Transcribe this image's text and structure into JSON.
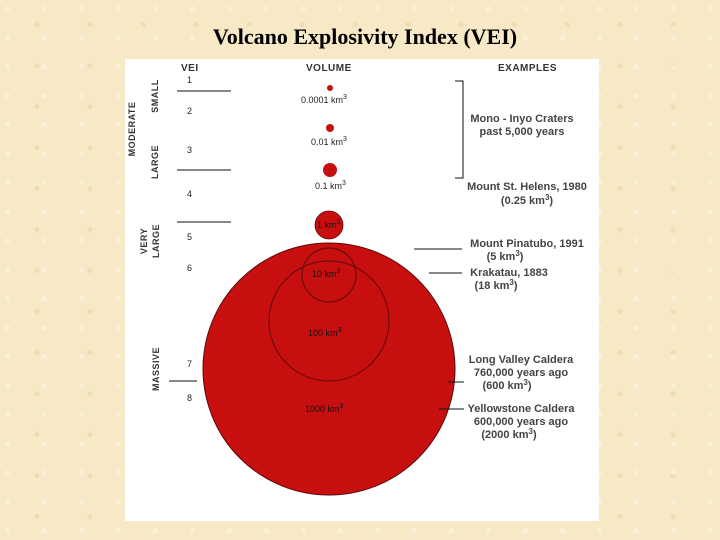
{
  "title": "Volcano Explosivity Index (VEI)",
  "headers": {
    "vei": "VEI",
    "volume": "VOLUME",
    "examples": "EXAMPLES"
  },
  "vei_levels": [
    "1",
    "2",
    "3",
    "4",
    "5",
    "6",
    "7",
    "8"
  ],
  "categories": {
    "small": "SMALL",
    "moderate": "MODERATE",
    "large": "LARGE",
    "very": "VERY",
    "very_large": "LARGE",
    "massive": "MASSIVE"
  },
  "volumes": {
    "v1": "0.0001 km",
    "v2": "0.01 km",
    "v3": "0.1 km",
    "v4": "1 km",
    "v5": "10 km",
    "v6": "100 km",
    "v7": "1000 km",
    "exp": "3"
  },
  "examples": {
    "mono_1": "Mono - Inyo Craters",
    "mono_2": "past 5,000 years",
    "sth_1": "Mount St. Helens, 1980",
    "sth_2": "(0.25 km",
    "pin_1": "Mount Pinatubo, 1991",
    "pin_2": "(5 km",
    "kra_1": "Krakatau, 1883",
    "kra_2": "(18 km",
    "lvc_1": "Long Valley Caldera",
    "lvc_2": "760,000 years ago",
    "lvc_3": "(600 km",
    "yel_1": "Yellowstone Caldera",
    "yel_2": "600,000 years ago",
    "yel_3": "(2000 km",
    "exp": "3",
    "close": ")"
  },
  "colors": {
    "eruption_red": "#c80f0f",
    "outline": "#5a0a0a"
  }
}
